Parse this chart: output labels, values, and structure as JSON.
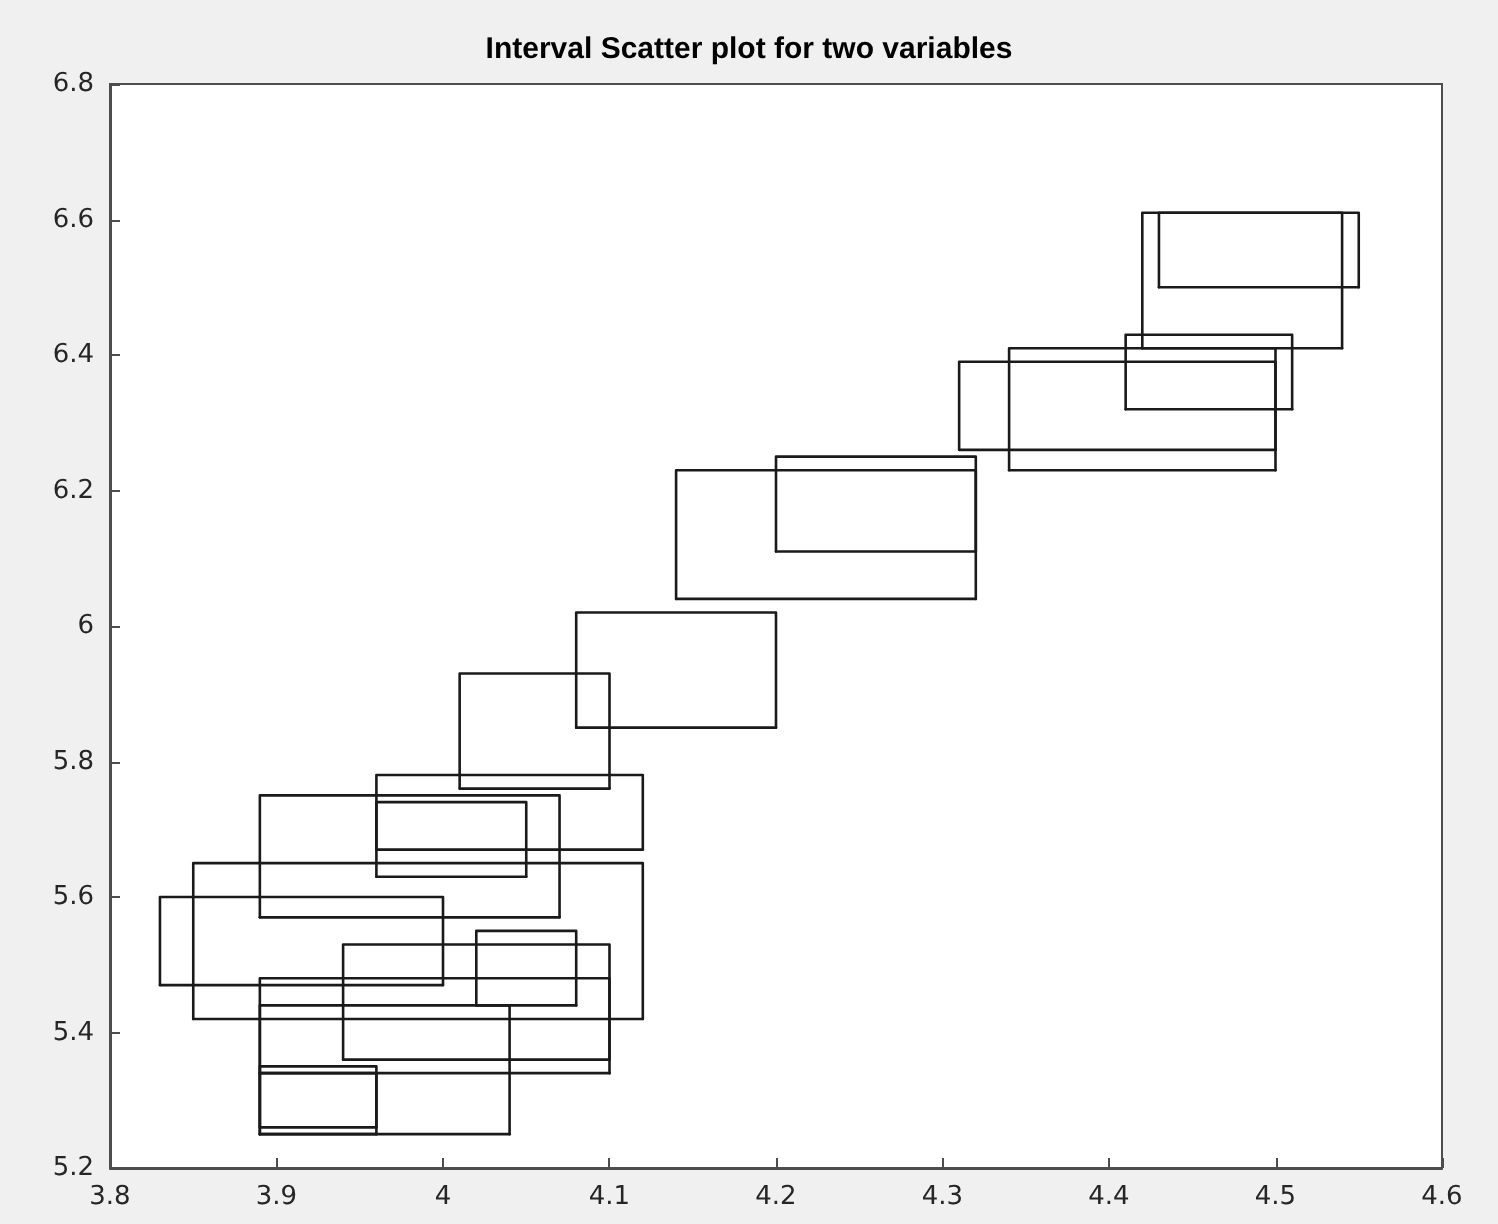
{
  "chart_data": {
    "type": "line",
    "title": "Interval Scatter plot for two variables",
    "marker": "none",
    "series": [
      {
        "color": "#1a1a1a",
        "x": [
          3.83,
          3.83,
          4.0,
          4.0
        ],
        "values": [
          5.47,
          5.6,
          5.6,
          5.47
        ]
      },
      {
        "color": "#1a1a1a",
        "x": [
          3.83,
          4.0
        ],
        "values": [
          5.47,
          5.47
        ]
      },
      {
        "color": "#1a1a1a",
        "x": [
          3.85,
          3.85,
          4.12,
          4.12
        ],
        "values": [
          5.42,
          5.65,
          5.65,
          5.42
        ]
      },
      {
        "color": "#1a1a1a",
        "x": [
          3.85,
          4.12
        ],
        "values": [
          5.42,
          5.42
        ]
      },
      {
        "color": "#1a1a1a",
        "x": [
          3.89,
          3.89,
          4.07,
          4.07
        ],
        "values": [
          5.57,
          5.75,
          5.75,
          5.57
        ]
      },
      {
        "color": "#1a1a1a",
        "x": [
          3.89,
          4.07
        ],
        "values": [
          5.57,
          5.57
        ]
      },
      {
        "color": "#1a1a1a",
        "x": [
          3.96,
          3.96,
          4.05,
          4.05
        ],
        "values": [
          5.63,
          5.74,
          5.74,
          5.63
        ]
      },
      {
        "color": "#1a1a1a",
        "x": [
          3.96,
          4.05
        ],
        "values": [
          5.63,
          5.63
        ]
      },
      {
        "color": "#1a1a1a",
        "x": [
          3.96,
          3.96,
          4.12,
          4.12
        ],
        "values": [
          5.67,
          5.78,
          5.78,
          5.67
        ]
      },
      {
        "color": "#1a1a1a",
        "x": [
          3.96,
          4.12
        ],
        "values": [
          5.67,
          5.67
        ]
      },
      {
        "color": "#1a1a1a",
        "x": [
          4.01,
          4.01,
          4.1,
          4.1
        ],
        "values": [
          5.76,
          5.93,
          5.93,
          5.76
        ]
      },
      {
        "color": "#1a1a1a",
        "x": [
          4.01,
          4.1
        ],
        "values": [
          5.76,
          5.76
        ]
      },
      {
        "color": "#1a1a1a",
        "x": [
          4.08,
          4.08,
          4.2,
          4.2
        ],
        "values": [
          5.85,
          6.02,
          6.02,
          5.85
        ]
      },
      {
        "color": "#1a1a1a",
        "x": [
          4.08,
          4.2
        ],
        "values": [
          5.85,
          5.85
        ]
      },
      {
        "color": "#1a1a1a",
        "x": [
          4.14,
          4.14,
          4.32,
          4.32
        ],
        "values": [
          6.04,
          6.23,
          6.23,
          6.04
        ]
      },
      {
        "color": "#1a1a1a",
        "x": [
          4.14,
          4.32
        ],
        "values": [
          6.04,
          6.04
        ]
      },
      {
        "color": "#1a1a1a",
        "x": [
          4.2,
          4.2,
          4.32,
          4.32
        ],
        "values": [
          6.11,
          6.25,
          6.25,
          6.11
        ]
      },
      {
        "color": "#1a1a1a",
        "x": [
          4.2,
          4.32
        ],
        "values": [
          6.11,
          6.11
        ]
      },
      {
        "color": "#1a1a1a",
        "x": [
          4.31,
          4.31,
          4.5,
          4.5
        ],
        "values": [
          6.26,
          6.39,
          6.39,
          6.26
        ]
      },
      {
        "color": "#1a1a1a",
        "x": [
          4.31,
          4.5
        ],
        "values": [
          6.26,
          6.26
        ]
      },
      {
        "color": "#1a1a1a",
        "x": [
          4.34,
          4.34,
          4.5,
          4.5
        ],
        "values": [
          6.23,
          6.41,
          6.41,
          6.23
        ]
      },
      {
        "color": "#1a1a1a",
        "x": [
          4.34,
          4.5
        ],
        "values": [
          6.23,
          6.23
        ]
      },
      {
        "color": "#1a1a1a",
        "x": [
          4.41,
          4.41,
          4.51,
          4.51
        ],
        "values": [
          6.32,
          6.43,
          6.43,
          6.32
        ]
      },
      {
        "color": "#1a1a1a",
        "x": [
          4.41,
          4.51
        ],
        "values": [
          6.32,
          6.32
        ]
      },
      {
        "color": "#1a1a1a",
        "x": [
          4.42,
          4.42,
          4.54,
          4.54
        ],
        "values": [
          6.41,
          6.61,
          6.61,
          6.41
        ]
      },
      {
        "color": "#1a1a1a",
        "x": [
          4.42,
          4.54
        ],
        "values": [
          6.41,
          6.41
        ]
      },
      {
        "color": "#1a1a1a",
        "x": [
          4.43,
          4.43,
          4.55,
          4.55
        ],
        "values": [
          6.5,
          6.61,
          6.61,
          6.5
        ]
      },
      {
        "color": "#1a1a1a",
        "x": [
          4.43,
          4.55
        ],
        "values": [
          6.5,
          6.5
        ]
      },
      {
        "color": "#1a1a1a",
        "x": [
          4.02,
          4.02,
          4.08,
          4.08
        ],
        "values": [
          5.44,
          5.55,
          5.55,
          5.44
        ]
      },
      {
        "color": "#1a1a1a",
        "x": [
          4.02,
          4.08
        ],
        "values": [
          5.44,
          5.44
        ]
      },
      {
        "color": "#1a1a1a",
        "x": [
          3.94,
          3.94,
          4.1,
          4.1
        ],
        "values": [
          5.36,
          5.53,
          5.53,
          5.36
        ]
      },
      {
        "color": "#1a1a1a",
        "x": [
          3.94,
          4.1
        ],
        "values": [
          5.36,
          5.36
        ]
      },
      {
        "color": "#1a1a1a",
        "x": [
          3.89,
          3.89,
          4.1,
          4.1
        ],
        "values": [
          5.34,
          5.48,
          5.48,
          5.34
        ]
      },
      {
        "color": "#1a1a1a",
        "x": [
          3.89,
          4.1
        ],
        "values": [
          5.34,
          5.34
        ]
      },
      {
        "color": "#1a1a1a",
        "x": [
          3.89,
          3.89,
          4.04,
          4.04
        ],
        "values": [
          5.25,
          5.44,
          5.44,
          5.25
        ]
      },
      {
        "color": "#1a1a1a",
        "x": [
          3.89,
          4.04
        ],
        "values": [
          5.25,
          5.25
        ]
      },
      {
        "color": "#1a1a1a",
        "x": [
          3.89,
          3.89,
          3.96,
          3.96
        ],
        "values": [
          5.25,
          5.35,
          5.35,
          5.25
        ]
      },
      {
        "color": "#1a1a1a",
        "x": [
          3.89,
          3.96
        ],
        "values": [
          5.25,
          5.25
        ]
      },
      {
        "color": "#1a1a1a",
        "x": [
          3.89,
          3.89,
          3.96,
          3.96
        ],
        "values": [
          5.26,
          5.34,
          5.34,
          5.26
        ]
      },
      {
        "color": "#1a1a1a",
        "x": [
          3.89,
          3.96
        ],
        "values": [
          5.26,
          5.26
        ]
      }
    ],
    "xlim": [
      3.8,
      4.6
    ],
    "xticks": [
      3.8,
      3.9,
      4,
      4.1,
      4.2,
      4.3,
      4.4,
      4.5,
      4.6
    ],
    "ylim": [
      5.2,
      6.8
    ],
    "yticks": [
      5.2,
      5.4,
      5.6,
      5.8,
      6,
      6.2,
      6.4,
      6.6,
      6.8
    ],
    "grid": false
  }
}
